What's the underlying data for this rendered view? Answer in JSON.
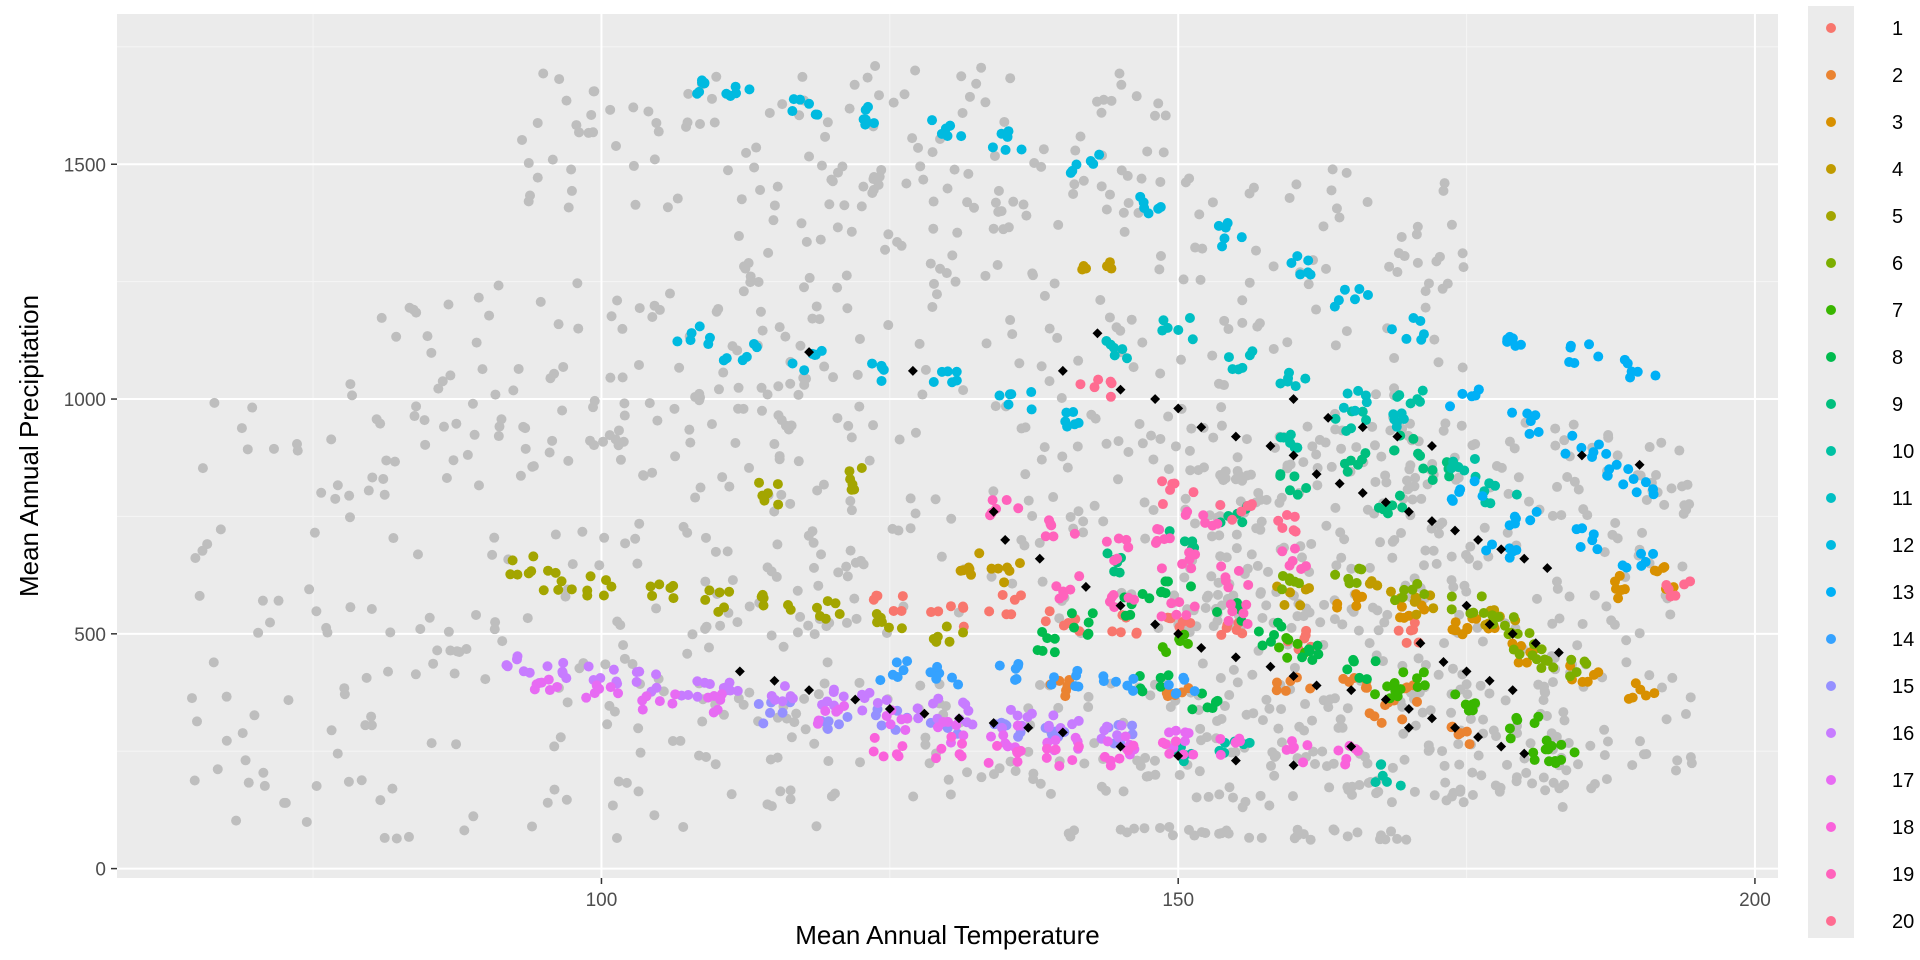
{
  "chart_data": {
    "type": "scatter",
    "title": "",
    "xlabel": "Mean Annual Temperature",
    "ylabel": "Mean Annual Precipitation",
    "xlim": [
      58,
      202
    ],
    "ylim": [
      -20,
      1820
    ],
    "x_ticks": [
      100,
      150,
      200
    ],
    "y_ticks": [
      0,
      500,
      1000,
      1500
    ],
    "grid": true,
    "legend_position": "right",
    "background_series": {
      "name": "",
      "color": "#bebebe",
      "regions": [
        {
          "x": [
            64,
            120
          ],
          "y": [
            60,
            1000
          ],
          "n": 220
        },
        {
          "x": [
            78,
            118
          ],
          "y": [
            900,
            1250
          ],
          "n": 80
        },
        {
          "x": [
            93,
            150
          ],
          "y": [
            1400,
            1720
          ],
          "n": 120
        },
        {
          "x": [
            110,
            175
          ],
          "y": [
            500,
            1500
          ],
          "n": 380
        },
        {
          "x": [
            150,
            195
          ],
          "y": [
            150,
            950
          ],
          "n": 330
        },
        {
          "x": [
            110,
            185
          ],
          "y": [
            130,
            400
          ],
          "n": 180
        },
        {
          "x": [
            140,
            170
          ],
          "y": [
            60,
            90
          ],
          "n": 35
        }
      ]
    },
    "series": [
      {
        "name": "1",
        "color": "#F8766D",
        "values": [
          [
            125,
            560
          ],
          [
            130,
            540
          ],
          [
            135,
            560
          ],
          [
            140,
            530
          ],
          [
            145,
            520
          ],
          [
            150,
            510
          ],
          [
            155,
            500
          ],
          [
            160,
            490
          ],
          [
            170,
            500
          ]
        ]
      },
      {
        "name": "2",
        "color": "#EA8331",
        "values": [
          [
            140,
            380
          ],
          [
            150,
            370
          ],
          [
            160,
            400
          ],
          [
            165,
            410
          ],
          [
            170,
            380
          ],
          [
            175,
            290
          ],
          [
            168,
            330
          ]
        ]
      },
      {
        "name": "3",
        "color": "#D89000",
        "values": [
          [
            165,
            560
          ],
          [
            170,
            540
          ],
          [
            175,
            500
          ],
          [
            180,
            460
          ],
          [
            185,
            420
          ],
          [
            190,
            380
          ],
          [
            192,
            620
          ],
          [
            188,
            600
          ],
          [
            176,
            520
          ]
        ]
      },
      {
        "name": "4",
        "color": "#C09B00",
        "values": [
          [
            132,
            650
          ],
          [
            135,
            630
          ],
          [
            160,
            580
          ],
          [
            168,
            590
          ],
          [
            172,
            560
          ],
          [
            178,
            530
          ],
          [
            143,
            1300
          ]
        ]
      },
      {
        "name": "5",
        "color": "#A3A500",
        "values": [
          [
            93,
            640
          ],
          [
            96,
            610
          ],
          [
            100,
            600
          ],
          [
            105,
            590
          ],
          [
            110,
            570
          ],
          [
            115,
            560
          ],
          [
            120,
            550
          ],
          [
            125,
            520
          ],
          [
            130,
            500
          ],
          [
            115,
            800
          ],
          [
            122,
            830
          ]
        ]
      },
      {
        "name": "6",
        "color": "#7CAE00",
        "values": [
          [
            160,
            600
          ],
          [
            165,
            620
          ],
          [
            170,
            590
          ],
          [
            175,
            560
          ],
          [
            178,
            520
          ],
          [
            180,
            480
          ],
          [
            182,
            450
          ],
          [
            184,
            420
          ]
        ]
      },
      {
        "name": "7",
        "color": "#39B600",
        "values": [
          [
            150,
            480
          ],
          [
            160,
            470
          ],
          [
            170,
            400
          ],
          [
            175,
            360
          ],
          [
            180,
            300
          ],
          [
            182,
            250
          ],
          [
            183,
            240
          ],
          [
            168,
            380
          ]
        ]
      },
      {
        "name": "8",
        "color": "#00BB4E",
        "values": [
          [
            138,
            480
          ],
          [
            142,
            520
          ],
          [
            146,
            560
          ],
          [
            150,
            600
          ],
          [
            154,
            550
          ],
          [
            158,
            500
          ],
          [
            162,
            450
          ],
          [
            166,
            420
          ],
          [
            148,
            400
          ],
          [
            152,
            350
          ]
        ]
      },
      {
        "name": "9",
        "color": "#00BF7D",
        "values": [
          [
            145,
            650
          ],
          [
            150,
            700
          ],
          [
            155,
            760
          ],
          [
            160,
            820
          ],
          [
            165,
            860
          ],
          [
            170,
            900
          ],
          [
            172,
            850
          ],
          [
            168,
            780
          ]
        ]
      },
      {
        "name": "10",
        "color": "#00C1A3",
        "values": [
          [
            150,
            240
          ],
          [
            155,
            260
          ],
          [
            160,
            900
          ],
          [
            165,
            950
          ],
          [
            170,
            1000
          ],
          [
            175,
            850
          ],
          [
            178,
            800
          ],
          [
            168,
            200
          ]
        ]
      },
      {
        "name": "11",
        "color": "#00BFC4",
        "values": [
          [
            145,
            1100
          ],
          [
            150,
            1150
          ],
          [
            155,
            1080
          ],
          [
            160,
            1050
          ],
          [
            165,
            1000
          ],
          [
            170,
            950
          ]
        ]
      },
      {
        "name": "12",
        "color": "#00BAE0",
        "values": [
          [
            108,
            1670
          ],
          [
            112,
            1650
          ],
          [
            118,
            1620
          ],
          [
            124,
            1600
          ],
          [
            130,
            1580
          ],
          [
            135,
            1550
          ],
          [
            142,
            1500
          ],
          [
            148,
            1420
          ],
          [
            155,
            1350
          ],
          [
            160,
            1280
          ],
          [
            165,
            1220
          ],
          [
            170,
            1150
          ],
          [
            108,
            1140
          ],
          [
            112,
            1100
          ],
          [
            118,
            1080
          ],
          [
            124,
            1060
          ],
          [
            130,
            1050
          ],
          [
            136,
            1000
          ],
          [
            140,
            950
          ]
        ]
      },
      {
        "name": "13",
        "color": "#00B0F6",
        "values": [
          [
            180,
            1120
          ],
          [
            185,
            1100
          ],
          [
            190,
            1060
          ],
          [
            175,
            1000
          ],
          [
            180,
            950
          ],
          [
            185,
            900
          ],
          [
            188,
            860
          ],
          [
            190,
            820
          ],
          [
            175,
            800
          ],
          [
            180,
            750
          ],
          [
            185,
            700
          ],
          [
            190,
            660
          ],
          [
            178,
            680
          ]
        ]
      },
      {
        "name": "14",
        "color": "#35A2FF",
        "values": [
          [
            125,
            420
          ],
          [
            130,
            410
          ],
          [
            135,
            420
          ],
          [
            140,
            410
          ],
          [
            145,
            400
          ],
          [
            150,
            395
          ]
        ]
      },
      {
        "name": "15",
        "color": "#9590FF",
        "values": [
          [
            115,
            330
          ],
          [
            120,
            320
          ],
          [
            125,
            320
          ],
          [
            130,
            310
          ],
          [
            135,
            300
          ],
          [
            140,
            300
          ],
          [
            145,
            290
          ]
        ]
      },
      {
        "name": "16",
        "color": "#C77CFF",
        "values": [
          [
            93,
            430
          ],
          [
            96,
            420
          ],
          [
            100,
            410
          ],
          [
            104,
            400
          ],
          [
            108,
            390
          ],
          [
            112,
            380
          ],
          [
            116,
            370
          ],
          [
            120,
            360
          ],
          [
            124,
            350
          ],
          [
            128,
            340
          ],
          [
            132,
            330
          ],
          [
            136,
            320
          ],
          [
            140,
            310
          ],
          [
            144,
            300
          ]
        ]
      },
      {
        "name": "17",
        "color": "#E76BF3",
        "values": [
          [
            95,
            380
          ],
          [
            100,
            370
          ],
          [
            105,
            360
          ],
          [
            110,
            350
          ],
          [
            120,
            330
          ],
          [
            125,
            320
          ],
          [
            130,
            290
          ],
          [
            135,
            280
          ],
          [
            140,
            270
          ],
          [
            145,
            260
          ],
          [
            150,
            280
          ]
        ]
      },
      {
        "name": "18",
        "color": "#FA62DB",
        "values": [
          [
            125,
            260
          ],
          [
            130,
            260
          ],
          [
            135,
            250
          ],
          [
            140,
            240
          ],
          [
            145,
            240
          ],
          [
            150,
            250
          ],
          [
            155,
            260
          ],
          [
            160,
            250
          ],
          [
            165,
            240
          ]
        ]
      },
      {
        "name": "19",
        "color": "#FF62BC",
        "values": [
          [
            135,
            760
          ],
          [
            140,
            720
          ],
          [
            145,
            680
          ],
          [
            150,
            650
          ],
          [
            155,
            620
          ],
          [
            140,
            600
          ],
          [
            145,
            580
          ],
          [
            150,
            560
          ],
          [
            155,
            540
          ],
          [
            160,
            660
          ],
          [
            148,
            700
          ],
          [
            152,
            740
          ]
        ]
      },
      {
        "name": "20",
        "color": "#FF6C91",
        "values": [
          [
            143,
            1020
          ],
          [
            150,
            800
          ],
          [
            155,
            760
          ],
          [
            160,
            740
          ],
          [
            193,
            600
          ]
        ]
      }
    ],
    "highlight_series": {
      "name": "",
      "color": "#000000",
      "shape": "diamond",
      "values": [
        [
          118,
          1100
        ],
        [
          127,
          1060
        ],
        [
          134,
          760
        ],
        [
          140,
          1060
        ],
        [
          143,
          1140
        ],
        [
          145,
          1020
        ],
        [
          148,
          1000
        ],
        [
          150,
          980
        ],
        [
          152,
          940
        ],
        [
          155,
          920
        ],
        [
          158,
          900
        ],
        [
          160,
          880
        ],
        [
          162,
          840
        ],
        [
          164,
          820
        ],
        [
          166,
          800
        ],
        [
          168,
          780
        ],
        [
          170,
          760
        ],
        [
          172,
          740
        ],
        [
          174,
          720
        ],
        [
          176,
          700
        ],
        [
          178,
          680
        ],
        [
          180,
          660
        ],
        [
          182,
          640
        ],
        [
          185,
          880
        ],
        [
          190,
          860
        ],
        [
          135,
          700
        ],
        [
          138,
          660
        ],
        [
          142,
          600
        ],
        [
          145,
          560
        ],
        [
          148,
          520
        ],
        [
          150,
          500
        ],
        [
          152,
          470
        ],
        [
          155,
          450
        ],
        [
          158,
          430
        ],
        [
          160,
          410
        ],
        [
          162,
          390
        ],
        [
          165,
          380
        ],
        [
          168,
          360
        ],
        [
          170,
          340
        ],
        [
          172,
          320
        ],
        [
          174,
          300
        ],
        [
          176,
          280
        ],
        [
          178,
          260
        ],
        [
          180,
          245
        ],
        [
          112,
          420
        ],
        [
          115,
          400
        ],
        [
          118,
          380
        ],
        [
          122,
          360
        ],
        [
          125,
          340
        ],
        [
          128,
          330
        ],
        [
          131,
          320
        ],
        [
          134,
          310
        ],
        [
          137,
          300
        ],
        [
          140,
          290
        ],
        [
          145,
          260
        ],
        [
          150,
          240
        ],
        [
          155,
          230
        ],
        [
          160,
          220
        ],
        [
          165,
          260
        ],
        [
          170,
          300
        ],
        [
          160,
          1000
        ],
        [
          163,
          960
        ],
        [
          166,
          940
        ],
        [
          169,
          920
        ],
        [
          172,
          900
        ],
        [
          175,
          560
        ],
        [
          177,
          520
        ],
        [
          179,
          500
        ],
        [
          181,
          480
        ],
        [
          183,
          460
        ],
        [
          171,
          480
        ],
        [
          173,
          440
        ],
        [
          175,
          420
        ],
        [
          177,
          400
        ],
        [
          179,
          380
        ]
      ]
    }
  }
}
